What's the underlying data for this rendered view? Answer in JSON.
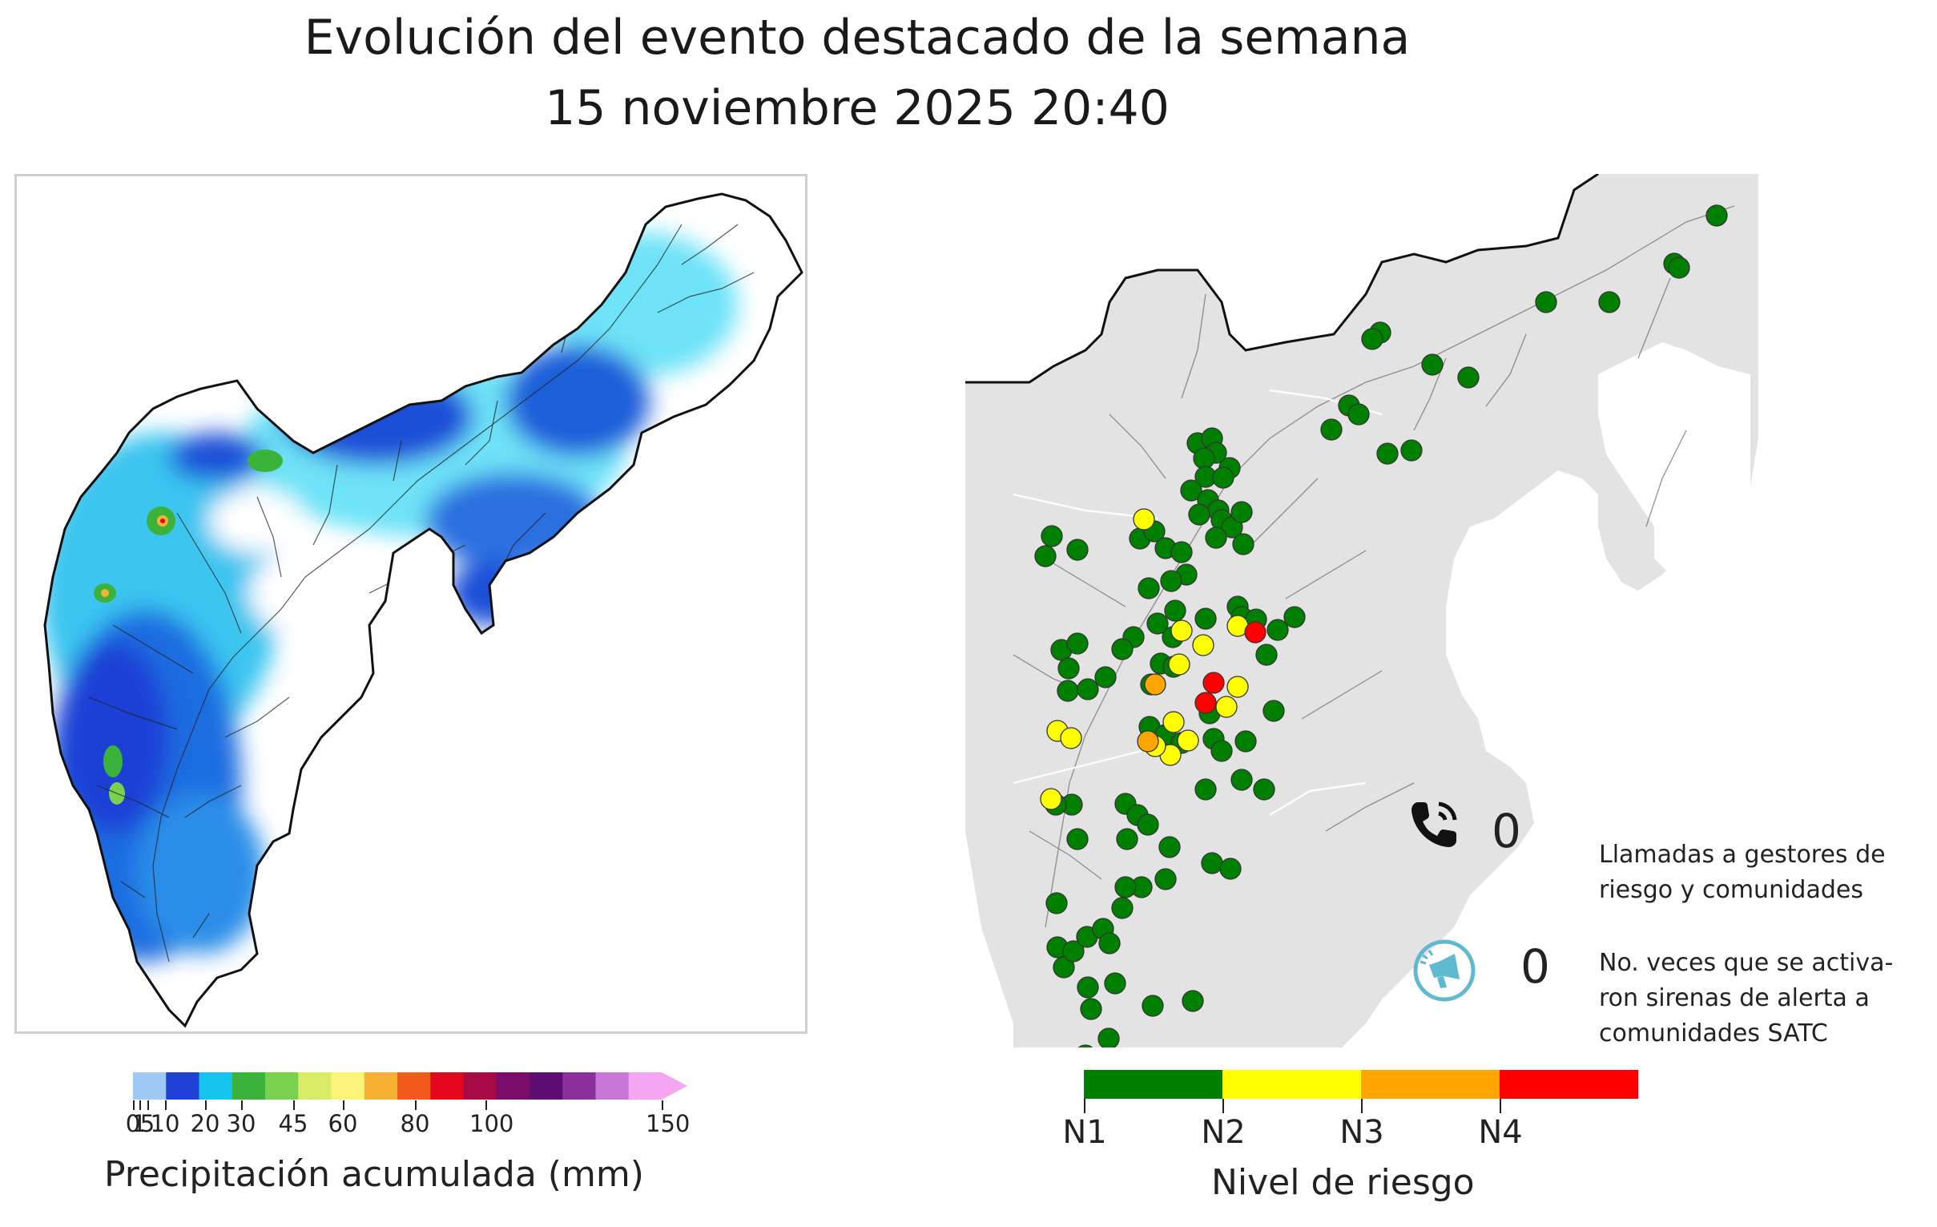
{
  "header": {
    "title_line1": "Evolución del evento destacado de la semana",
    "title_line2": "15 noviembre 2025 20:40"
  },
  "precipitation_map": {
    "colorbar_label": "Precipitación acumulada (mm)",
    "colorbar_ticks": [
      "0",
      "1",
      "5",
      "10",
      "20",
      "30",
      "45",
      "60",
      "80",
      "100",
      "150"
    ],
    "colorbar_colors": [
      "#9ec9f5",
      "#1f3fd6",
      "#16c4ef",
      "#3bb33b",
      "#7ad04f",
      "#d8ec67",
      "#fbf37a",
      "#f7b233",
      "#f25a1c",
      "#e4081c",
      "#a70a45",
      "#7a0d6a",
      "#5e0e72",
      "#8a2f9b",
      "#c877d8",
      "#f6a6f1"
    ]
  },
  "risk_map": {
    "counters": [
      {
        "icon": "phone-icon",
        "value": "0",
        "label_line1": "Llamadas a gestores de",
        "label_line2": "riesgo y comunidades"
      },
      {
        "icon": "siren-icon",
        "value": "0",
        "label_line1": "No. veces que se activa-",
        "label_line2": "ron sirenas de alerta a",
        "label_line3": "comunidades SATC"
      }
    ],
    "legend_label": "Nivel de riesgo",
    "levels": [
      {
        "name": "N1",
        "color": "#008000"
      },
      {
        "name": "N2",
        "color": "#ffff00"
      },
      {
        "name": "N3",
        "color": "#ffa500"
      },
      {
        "name": "N4",
        "color": "#ff0000"
      }
    ]
  }
}
